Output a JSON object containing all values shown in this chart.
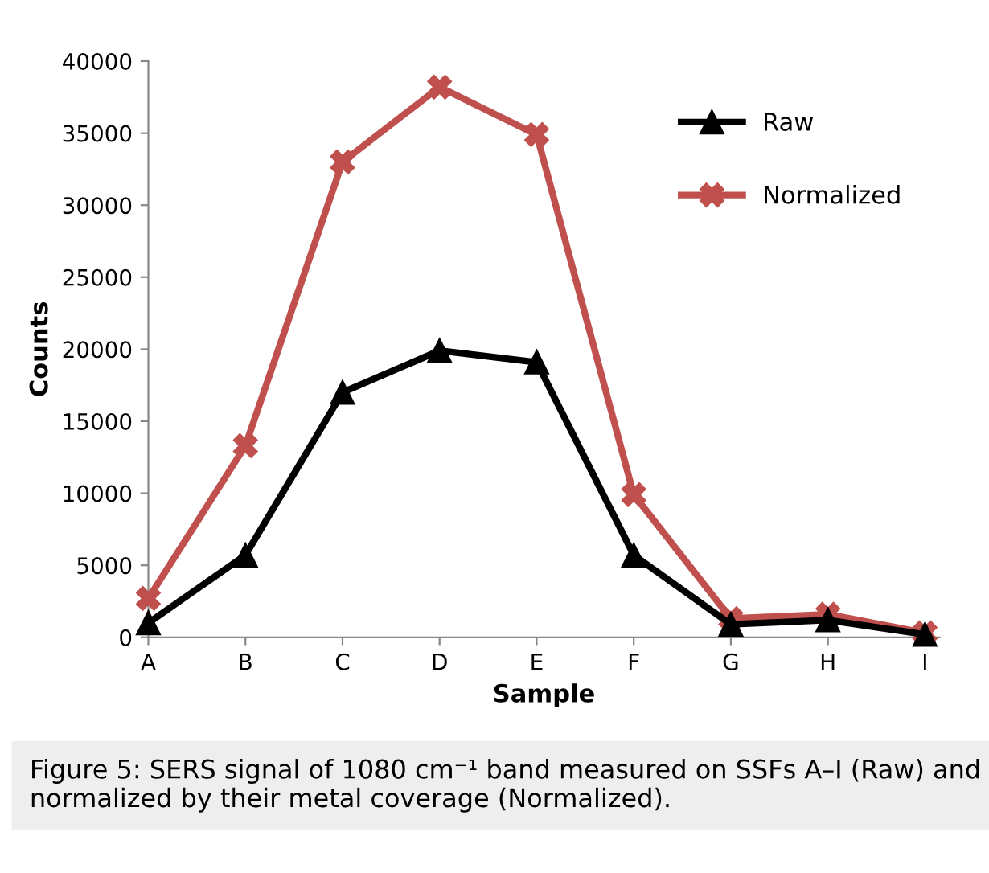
{
  "chart_data": {
    "type": "line",
    "xlabel": "Sample",
    "ylabel": "Counts",
    "categories": [
      "A",
      "B",
      "C",
      "D",
      "E",
      "F",
      "G",
      "H",
      "I"
    ],
    "series": [
      {
        "name": "Raw",
        "color": "#000000",
        "marker": "triangle",
        "values": [
          1000,
          5700,
          17000,
          19900,
          19100,
          5700,
          900,
          1200,
          200
        ]
      },
      {
        "name": "Normalized",
        "color": "#c0504d",
        "marker": "cross",
        "values": [
          2700,
          13300,
          33000,
          38200,
          34900,
          9900,
          1300,
          1600,
          300
        ]
      }
    ],
    "ylim": [
      0,
      40000
    ],
    "yticks": [
      0,
      5000,
      10000,
      15000,
      20000,
      25000,
      30000,
      35000,
      40000
    ],
    "grid": false,
    "legend": "top right",
    "line_style": "solid",
    "annotations": [
      "Figure 5: SERS signal of 1080 cm⁻¹ band measured on SSFs A–I (Raw) and normalized by their metal coverage (Normalized)."
    ]
  }
}
